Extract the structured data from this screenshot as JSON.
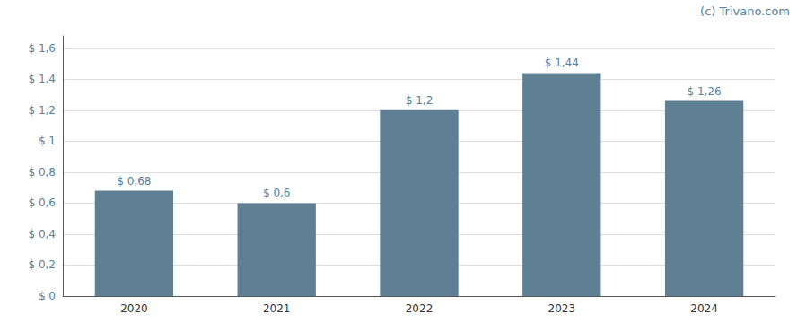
{
  "chart_data": {
    "type": "bar",
    "categories": [
      "2020",
      "2021",
      "2022",
      "2023",
      "2024"
    ],
    "values": [
      0.68,
      0.6,
      1.2,
      1.44,
      1.26
    ],
    "value_labels": [
      "$ 0,68",
      "$ 0,6",
      "$ 1,2",
      "$ 1,44",
      "$ 1,26"
    ],
    "data_labels": true,
    "color": "#5f7f93",
    "ylim": [
      0,
      1.68
    ],
    "yticks": [
      {
        "value": 0,
        "label": "$ 0"
      },
      {
        "value": 0.2,
        "label": "$ 0,2"
      },
      {
        "value": 0.4,
        "label": "$ 0,4"
      },
      {
        "value": 0.6,
        "label": "$ 0,6"
      },
      {
        "value": 0.8,
        "label": "$ 0,8"
      },
      {
        "value": 1.0,
        "label": "$ 1"
      },
      {
        "value": 1.2,
        "label": "$ 1,2"
      },
      {
        "value": 1.4,
        "label": "$ 1,4"
      },
      {
        "value": 1.6,
        "label": "$ 1,6"
      }
    ],
    "grid": true,
    "annotation": "(c) Trivano.com"
  }
}
